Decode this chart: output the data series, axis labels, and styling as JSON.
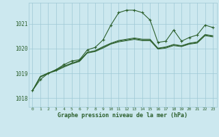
{
  "title": "Graphe pression niveau de la mer (hPa)",
  "background_color": "#cce8ef",
  "grid_color": "#9ec8d4",
  "line_color": "#2a5e2a",
  "xlim": [
    -0.5,
    23.5
  ],
  "ylim": [
    1017.65,
    1021.85
  ],
  "yticks": [
    1018,
    1019,
    1020,
    1021
  ],
  "xticks": [
    0,
    1,
    2,
    3,
    4,
    5,
    6,
    7,
    8,
    9,
    10,
    11,
    12,
    13,
    14,
    15,
    16,
    17,
    18,
    19,
    20,
    21,
    22,
    23
  ],
  "main_series": [
    1018.3,
    1018.75,
    1019.0,
    1019.15,
    1019.35,
    1019.5,
    1019.55,
    1019.95,
    1020.05,
    1020.35,
    1020.95,
    1021.45,
    1021.55,
    1021.55,
    1021.45,
    1021.15,
    1020.25,
    1020.3,
    1020.75,
    1020.3,
    1020.45,
    1020.55,
    1020.95,
    1020.85
  ],
  "trend_series": [
    [
      1018.3,
      1018.85,
      1019.0,
      1019.15,
      1019.3,
      1019.4,
      1019.5,
      1019.85,
      1019.9,
      1020.05,
      1020.2,
      1020.3,
      1020.35,
      1020.4,
      1020.35,
      1020.35,
      1020.0,
      1020.05,
      1020.15,
      1020.1,
      1020.2,
      1020.25,
      1020.55,
      1020.5
    ],
    [
      1018.3,
      1018.85,
      1019.0,
      1019.1,
      1019.25,
      1019.38,
      1019.48,
      1019.82,
      1019.88,
      1020.02,
      1020.18,
      1020.27,
      1020.32,
      1020.37,
      1020.32,
      1020.32,
      1019.98,
      1020.02,
      1020.12,
      1020.08,
      1020.18,
      1020.22,
      1020.52,
      1020.47
    ],
    [
      1018.3,
      1018.88,
      1019.02,
      1019.12,
      1019.28,
      1019.42,
      1019.52,
      1019.85,
      1019.92,
      1020.08,
      1020.22,
      1020.33,
      1020.38,
      1020.43,
      1020.38,
      1020.38,
      1020.02,
      1020.07,
      1020.17,
      1020.12,
      1020.22,
      1020.27,
      1020.57,
      1020.52
    ]
  ],
  "figsize": [
    3.2,
    2.0
  ],
  "dpi": 100
}
